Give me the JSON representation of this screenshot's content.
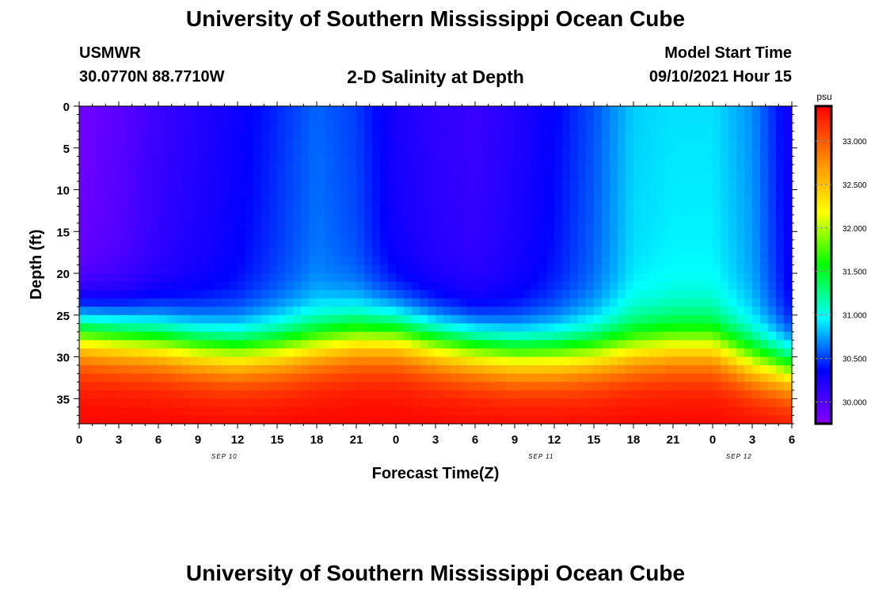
{
  "page": {
    "title_top": "University of Southern Mississippi Ocean Cube",
    "title_bottom": "University of Southern Mississippi Ocean Cube",
    "station": "USMWR",
    "coordinates": "30.0770N  88.7710W",
    "subtitle": "2-D Salinity at Depth",
    "model_start_label": "Model Start Time",
    "model_start_value": "09/10/2021 Hour 15"
  },
  "chart_data": {
    "type": "heatmap",
    "xlabel": "Forecast Time(Z)",
    "ylabel": "Depth (ft)",
    "x_tick_labels": [
      "0",
      "3",
      "6",
      "9",
      "12",
      "15",
      "18",
      "21",
      "0",
      "3",
      "6",
      "9",
      "12",
      "15",
      "18",
      "21",
      "0",
      "3",
      "6"
    ],
    "date_labels": [
      {
        "text": "SEP 10",
        "at_hour": 11
      },
      {
        "text": "SEP 11",
        "at_hour": 35
      },
      {
        "text": "SEP 12",
        "at_hour": 50
      }
    ],
    "x_hours_range": [
      0,
      54
    ],
    "y_range_ft": [
      0,
      38
    ],
    "y_tick_labels": [
      0,
      5,
      10,
      15,
      20,
      25,
      30,
      35
    ],
    "depth_reversed": true,
    "colorbar": {
      "unit": "psu",
      "range": [
        29.75,
        33.4
      ],
      "tick_values": [
        30.0,
        30.5,
        31.0,
        31.5,
        32.0,
        32.5,
        33.0
      ],
      "tick_labels": [
        "30.000",
        "30.500",
        "31.000",
        "31.500",
        "32.000",
        "32.500",
        "33.000"
      ],
      "colors": [
        "#8800ff",
        "#0000ff",
        "#00ffff",
        "#00ff00",
        "#ffff00",
        "#ff8800",
        "#ff0000"
      ]
    },
    "surface_salinity_psu": {
      "hours": [
        0,
        3,
        6,
        9,
        12,
        15,
        18,
        21,
        24,
        27,
        30,
        33,
        36,
        39,
        42,
        45,
        48,
        51,
        54
      ],
      "values": [
        29.85,
        29.95,
        30.1,
        30.2,
        30.3,
        30.45,
        30.6,
        30.5,
        30.25,
        30.15,
        30.1,
        30.2,
        30.35,
        30.55,
        30.85,
        30.9,
        30.9,
        30.7,
        30.25
      ]
    },
    "halocline_depth_ft": {
      "hours": [
        0,
        3,
        6,
        9,
        12,
        15,
        18,
        21,
        24,
        27,
        30,
        33,
        36,
        39,
        42,
        45,
        48,
        51,
        54
      ],
      "values": [
        27,
        27.5,
        28,
        28.8,
        29.3,
        29,
        28.3,
        27.5,
        27.3,
        28.3,
        29,
        29.6,
        29.7,
        29.5,
        29,
        28.6,
        28.6,
        30.5,
        31.5
      ]
    },
    "bottom_salinity_psu": 33.3
  }
}
